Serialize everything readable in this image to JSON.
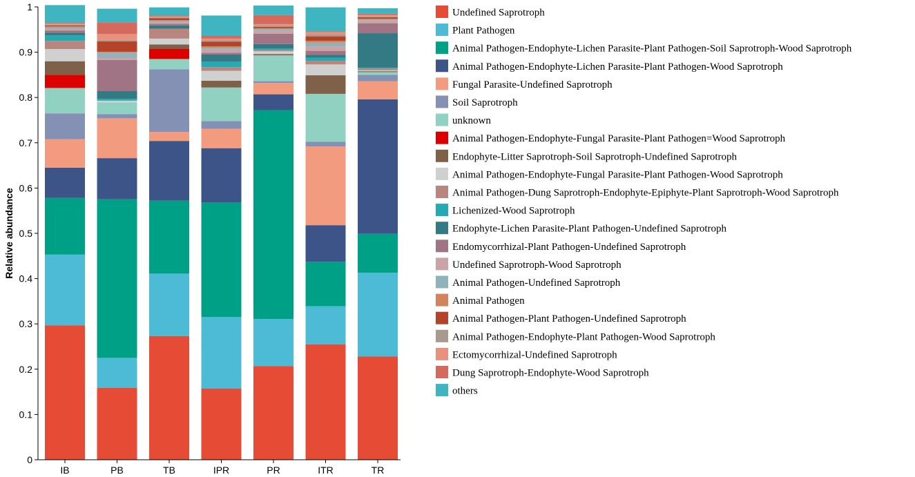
{
  "chart_data": {
    "type": "stacked-bar",
    "ylabel": "Relative abundance",
    "xlabel": "",
    "ylim": [
      0,
      1
    ],
    "yticks": [
      "0",
      "0.1",
      "0.2",
      "0.3",
      "0.4",
      "0.5",
      "0.6",
      "0.7",
      "0.8",
      "0.9",
      "1"
    ],
    "categories": [
      "IB",
      "PB",
      "TB",
      "IPR",
      "PR",
      "ITR",
      "TR"
    ],
    "series": [
      {
        "name": "Undefined Saprotroph",
        "color": "#E64B35",
        "values": [
          0.297,
          0.159,
          0.273,
          0.157,
          0.207,
          0.255,
          0.228
        ]
      },
      {
        "name": "Plant Pathogen",
        "color": "#4DBBD5",
        "values": [
          0.156,
          0.066,
          0.138,
          0.158,
          0.104,
          0.084,
          0.185
        ]
      },
      {
        "name": "Animal Pathogen-Endophyte-Lichen Parasite-Plant Pathogen-Soil Saprotroph-Wood Saprotroph",
        "color": "#00A087",
        "values": [
          0.125,
          0.35,
          0.161,
          0.253,
          0.461,
          0.098,
          0.086
        ]
      },
      {
        "name": "Animal Pathogen-Endophyte-Lichen Parasite-Plant Pathogen-Wood Saprotroph",
        "color": "#3C5488",
        "values": [
          0.067,
          0.091,
          0.132,
          0.12,
          0.035,
          0.081,
          0.297
        ]
      },
      {
        "name": "Fungal Parasite-Undefined Saprotroph",
        "color": "#F39B7F",
        "values": [
          0.063,
          0.088,
          0.02,
          0.043,
          0.025,
          0.174,
          0.04
        ]
      },
      {
        "name": "Soil Saprotroph",
        "color": "#8491B4",
        "values": [
          0.057,
          0.009,
          0.138,
          0.017,
          0.004,
          0.01,
          0.014
        ]
      },
      {
        "name": "unknown",
        "color": "#91D1C2",
        "values": [
          0.056,
          0.026,
          0.023,
          0.074,
          0.057,
          0.106,
          0.006
        ]
      },
      {
        "name": "Animal Pathogen-Endophyte-Fungal Parasite-Plant Pathogen=Wood Saprotroph",
        "color": "#DC0000",
        "values": [
          0.029,
          0.0,
          0.022,
          0.0,
          0.0,
          0.0,
          0.0
        ]
      },
      {
        "name": "Endophyte-Litter Saprotroph-Soil Saprotroph-Undefined Saprotroph",
        "color": "#7E6148",
        "values": [
          0.03,
          0.0,
          0.01,
          0.015,
          0.003,
          0.041,
          0.002
        ]
      },
      {
        "name": "Animal Pathogen-Endophyte-Fungal Parasite-Plant Pathogen-Wood Saprotroph",
        "color": "#D0D0D0",
        "values": [
          0.027,
          0.004,
          0.013,
          0.022,
          0.006,
          0.024,
          0.002
        ]
      },
      {
        "name": "Animal Pathogen-Dung Saprotroph-Endophyte-Epiphyte-Plant Saprotroph-Wood Saprotroph",
        "color": "#B8867F",
        "values": [
          0.018,
          0.0,
          0.022,
          0.008,
          0.003,
          0.008,
          0.004
        ]
      },
      {
        "name": "Lichenized-Wood Saprotroph",
        "color": "#25A9B2",
        "values": [
          0.012,
          0.004,
          0.0,
          0.012,
          0.003,
          0.007,
          0.002
        ]
      },
      {
        "name": "Endophyte-Lichen Parasite-Plant Pathogen-Undefined Saprotroph",
        "color": "#337A84",
        "values": [
          0.006,
          0.017,
          0.007,
          0.016,
          0.01,
          0.006,
          0.076
        ]
      },
      {
        "name": "Endomycorrhizal-Plant Pathogen-Undefined Saprotroph",
        "color": "#A07484",
        "values": [
          0.005,
          0.069,
          0.004,
          0.004,
          0.023,
          0.009,
          0.022
        ]
      },
      {
        "name": "Undefined Saprotroph-Wood Saprotroph",
        "color": "#C9A3A6",
        "values": [
          0.004,
          0.005,
          0.003,
          0.007,
          0.006,
          0.01,
          0.006
        ]
      },
      {
        "name": "Animal Pathogen-Undefined Saprotroph",
        "color": "#8FB2BB",
        "values": [
          0.003,
          0.011,
          0.003,
          0.004,
          0.004,
          0.008,
          0.002
        ]
      },
      {
        "name": "Animal Pathogen",
        "color": "#D2845C",
        "values": [
          0.002,
          0.002,
          0.002,
          0.003,
          0.002,
          0.004,
          0.002
        ]
      },
      {
        "name": "Animal Pathogen-Plant Pathogen-Undefined Saprotroph",
        "color": "#B5432A",
        "values": [
          0.002,
          0.023,
          0.004,
          0.01,
          0.003,
          0.01,
          0.003
        ]
      },
      {
        "name": "Animal Pathogen-Endophyte-Plant Pathogen-Wood Saprotroph",
        "color": "#A89A8E",
        "values": [
          0.002,
          0.003,
          0.002,
          0.003,
          0.003,
          0.004,
          0.002
        ]
      },
      {
        "name": "Ectomycorrhizal-Undefined Saprotroph",
        "color": "#E8917E",
        "values": [
          0.002,
          0.013,
          0.002,
          0.004,
          0.003,
          0.005,
          0.003
        ]
      },
      {
        "name": "Dung Saprotroph-Endophyte-Wood Saprotroph",
        "color": "#D46A5E",
        "values": [
          0.002,
          0.026,
          0.002,
          0.006,
          0.02,
          0.002,
          0.003
        ]
      },
      {
        "name": "others",
        "color": "#3FB5C2",
        "values": [
          0.039,
          0.03,
          0.018,
          0.045,
          0.021,
          0.053,
          0.012
        ]
      }
    ]
  }
}
